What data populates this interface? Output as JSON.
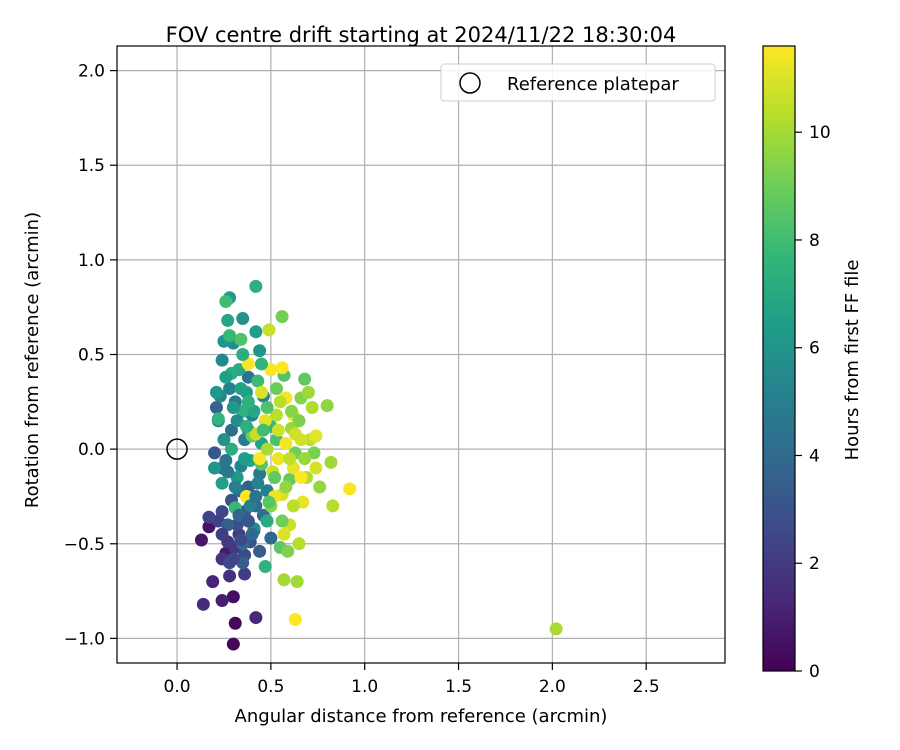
{
  "chart_data": {
    "type": "scatter",
    "title": "FOV centre drift starting at 2024/11/22 18:30:04",
    "xlabel": "Angular distance from reference (arcmin)",
    "ylabel": "Rotation from reference (arcmin)",
    "xlim": [
      -0.32,
      2.92
    ],
    "ylim": [
      -1.13,
      2.13
    ],
    "xticks": [
      "0.0",
      "0.5",
      "1.0",
      "1.5",
      "2.0",
      "2.5"
    ],
    "yticks": [
      "−1.0",
      "−0.5",
      "0.0",
      "0.5",
      "1.0",
      "1.5",
      "2.0"
    ],
    "grid": true,
    "legend": {
      "placement": "upper-right",
      "label": "Reference platepar"
    },
    "reference_point": {
      "x": 0.0,
      "y": 0.0
    },
    "colorbar": {
      "label": "Hours from first FF file",
      "range": [
        0,
        11.6
      ],
      "ticks": [
        "0",
        "2",
        "4",
        "6",
        "8",
        "10"
      ],
      "colormap": [
        "#440154",
        "#482878",
        "#3e4989",
        "#31688e",
        "#26828e",
        "#1f9e89",
        "#35b779",
        "#6ece58",
        "#b5de2b",
        "#fde725"
      ]
    },
    "points": [
      {
        "x": 0.3,
        "y": -1.03,
        "c": 0.2
      },
      {
        "x": 0.31,
        "y": -0.92,
        "c": 0.3
      },
      {
        "x": 0.3,
        "y": -0.78,
        "c": 0.5
      },
      {
        "x": 0.17,
        "y": -0.41,
        "c": 0.6
      },
      {
        "x": 0.13,
        "y": -0.48,
        "c": 0.7
      },
      {
        "x": 0.26,
        "y": -0.55,
        "c": 0.8
      },
      {
        "x": 0.24,
        "y": -0.8,
        "c": 1.0
      },
      {
        "x": 0.19,
        "y": -0.7,
        "c": 1.2
      },
      {
        "x": 0.42,
        "y": -0.89,
        "c": 1.3
      },
      {
        "x": 0.14,
        "y": -0.82,
        "c": 1.5
      },
      {
        "x": 0.28,
        "y": -0.67,
        "c": 1.6
      },
      {
        "x": 0.24,
        "y": -0.58,
        "c": 1.8
      },
      {
        "x": 0.31,
        "y": -0.52,
        "c": 1.9
      },
      {
        "x": 0.27,
        "y": -0.49,
        "c": 2.0
      },
      {
        "x": 0.36,
        "y": -0.66,
        "c": 2.1
      },
      {
        "x": 0.33,
        "y": -0.45,
        "c": 2.2
      },
      {
        "x": 0.22,
        "y": -0.38,
        "c": 2.3
      },
      {
        "x": 0.17,
        "y": -0.36,
        "c": 2.4
      },
      {
        "x": 0.24,
        "y": -0.33,
        "c": 2.5
      },
      {
        "x": 0.28,
        "y": -0.6,
        "c": 2.6
      },
      {
        "x": 0.36,
        "y": -0.56,
        "c": 2.7
      },
      {
        "x": 0.32,
        "y": -0.4,
        "c": 2.8
      },
      {
        "x": 0.39,
        "y": -0.49,
        "c": 2.9
      },
      {
        "x": 0.29,
        "y": -0.27,
        "c": 3.0
      },
      {
        "x": 0.2,
        "y": -0.02,
        "c": 3.1
      },
      {
        "x": 0.41,
        "y": -0.43,
        "c": 3.2
      },
      {
        "x": 0.36,
        "y": -0.33,
        "c": 3.3
      },
      {
        "x": 0.44,
        "y": -0.54,
        "c": 3.4
      },
      {
        "x": 0.35,
        "y": -0.6,
        "c": 3.5
      },
      {
        "x": 0.38,
        "y": -0.2,
        "c": 3.6
      },
      {
        "x": 0.21,
        "y": 0.22,
        "c": 3.7
      },
      {
        "x": 0.5,
        "y": -0.47,
        "c": 3.8
      },
      {
        "x": 0.42,
        "y": -0.3,
        "c": 3.9
      },
      {
        "x": 0.24,
        "y": -0.1,
        "c": 4.0
      },
      {
        "x": 0.33,
        "y": -0.22,
        "c": 4.1
      },
      {
        "x": 0.29,
        "y": 0.1,
        "c": 4.2
      },
      {
        "x": 0.46,
        "y": -0.35,
        "c": 4.3
      },
      {
        "x": 0.38,
        "y": 0.38,
        "c": 4.4
      },
      {
        "x": 0.26,
        "y": -0.06,
        "c": 4.5
      },
      {
        "x": 0.31,
        "y": 0.25,
        "c": 4.6
      },
      {
        "x": 0.44,
        "y": -0.13,
        "c": 4.7
      },
      {
        "x": 0.36,
        "y": 0.05,
        "c": 4.8
      },
      {
        "x": 0.22,
        "y": 0.15,
        "c": 4.9
      },
      {
        "x": 0.48,
        "y": -0.22,
        "c": 5.0
      },
      {
        "x": 0.4,
        "y": 0.18,
        "c": 5.1
      },
      {
        "x": 0.28,
        "y": 0.32,
        "c": 5.2
      },
      {
        "x": 0.34,
        "y": -0.09,
        "c": 5.3
      },
      {
        "x": 0.46,
        "y": 0.28,
        "c": 5.4
      },
      {
        "x": 0.24,
        "y": 0.47,
        "c": 5.5
      },
      {
        "x": 0.41,
        "y": -0.42,
        "c": 5.6
      },
      {
        "x": 0.3,
        "y": 0.56,
        "c": 5.7
      },
      {
        "x": 0.38,
        "y": 0.1,
        "c": 5.8
      },
      {
        "x": 0.35,
        "y": 0.69,
        "c": 5.9
      },
      {
        "x": 0.25,
        "y": 0.57,
        "c": 6.0
      },
      {
        "x": 0.44,
        "y": 0.52,
        "c": 6.1
      },
      {
        "x": 0.32,
        "y": -0.15,
        "c": 6.2
      },
      {
        "x": 0.28,
        "y": 0.8,
        "c": 6.3
      },
      {
        "x": 0.42,
        "y": 0.62,
        "c": 6.4
      },
      {
        "x": 0.37,
        "y": 0.3,
        "c": 6.5
      },
      {
        "x": 0.24,
        "y": -0.18,
        "c": 6.6
      },
      {
        "x": 0.45,
        "y": 0.03,
        "c": 6.7
      },
      {
        "x": 0.27,
        "y": 0.68,
        "c": 6.8
      },
      {
        "x": 0.39,
        "y": -0.06,
        "c": 6.9
      },
      {
        "x": 0.33,
        "y": 0.42,
        "c": 7.0
      },
      {
        "x": 0.48,
        "y": -0.38,
        "c": 7.1
      },
      {
        "x": 0.29,
        "y": 0.0,
        "c": 7.2
      },
      {
        "x": 0.42,
        "y": 0.86,
        "c": 7.3
      },
      {
        "x": 0.35,
        "y": 0.2,
        "c": 7.4
      },
      {
        "x": 0.47,
        "y": -0.62,
        "c": 7.5
      },
      {
        "x": 0.22,
        "y": 0.16,
        "c": 7.6
      },
      {
        "x": 0.5,
        "y": 0.12,
        "c": 7.7
      },
      {
        "x": 0.31,
        "y": -0.31,
        "c": 7.8
      },
      {
        "x": 0.43,
        "y": 0.36,
        "c": 7.9
      },
      {
        "x": 0.26,
        "y": 0.78,
        "c": 8.0
      },
      {
        "x": 0.37,
        "y": -0.25,
        "c": 8.1
      },
      {
        "x": 0.53,
        "y": 0.05,
        "c": 8.2
      },
      {
        "x": 0.34,
        "y": 0.58,
        "c": 8.3
      },
      {
        "x": 0.57,
        "y": 0.39,
        "c": 8.4
      },
      {
        "x": 0.45,
        "y": -0.08,
        "c": 8.5
      },
      {
        "x": 0.55,
        "y": -0.52,
        "c": 8.6
      },
      {
        "x": 0.68,
        "y": 0.37,
        "c": 8.7
      },
      {
        "x": 0.6,
        "y": -0.16,
        "c": 8.8
      },
      {
        "x": 0.4,
        "y": 0.07,
        "c": 8.9
      },
      {
        "x": 0.63,
        "y": -0.02,
        "c": 9.0
      },
      {
        "x": 0.56,
        "y": 0.7,
        "c": 9.1
      },
      {
        "x": 0.73,
        "y": -0.02,
        "c": 9.2
      },
      {
        "x": 0.59,
        "y": -0.54,
        "c": 9.3
      },
      {
        "x": 0.66,
        "y": 0.27,
        "c": 9.4
      },
      {
        "x": 0.5,
        "y": -0.3,
        "c": 9.5
      },
      {
        "x": 0.8,
        "y": 0.23,
        "c": 9.6
      },
      {
        "x": 0.76,
        "y": -0.2,
        "c": 9.7
      },
      {
        "x": 0.61,
        "y": 0.11,
        "c": 9.8
      },
      {
        "x": 0.82,
        "y": -0.07,
        "c": 9.9
      },
      {
        "x": 0.57,
        "y": -0.69,
        "c": 10.0
      },
      {
        "x": 0.64,
        "y": -0.7,
        "c": 10.0
      },
      {
        "x": 2.02,
        "y": -0.95,
        "c": 10.1
      },
      {
        "x": 0.69,
        "y": -0.15,
        "c": 10.2
      },
      {
        "x": 0.83,
        "y": -0.3,
        "c": 10.3
      },
      {
        "x": 0.53,
        "y": 0.18,
        "c": 10.4
      },
      {
        "x": 0.71,
        "y": 0.05,
        "c": 10.5
      },
      {
        "x": 0.49,
        "y": 0.63,
        "c": 10.6
      },
      {
        "x": 0.6,
        "y": -0.4,
        "c": 10.7
      },
      {
        "x": 0.66,
        "y": 0.05,
        "c": 10.8
      },
      {
        "x": 0.56,
        "y": -0.24,
        "c": 10.9
      },
      {
        "x": 0.45,
        "y": 0.3,
        "c": 11.0
      },
      {
        "x": 0.74,
        "y": 0.07,
        "c": 11.1
      },
      {
        "x": 0.62,
        "y": -0.1,
        "c": 11.2
      },
      {
        "x": 0.52,
        "y": -0.25,
        "c": 11.3
      },
      {
        "x": 0.58,
        "y": 0.27,
        "c": 11.4
      },
      {
        "x": 0.92,
        "y": -0.21,
        "c": 11.5
      },
      {
        "x": 0.38,
        "y": 0.45,
        "c": 11.5
      },
      {
        "x": 0.44,
        "y": -0.05,
        "c": 11.6
      },
      {
        "x": 0.63,
        "y": -0.9,
        "c": 11.6
      },
      {
        "x": 0.66,
        "y": -0.15,
        "c": 11.6
      },
      {
        "x": 0.56,
        "y": 0.43,
        "c": 11.6
      },
      {
        "x": 0.37,
        "y": -0.25,
        "c": 11.6
      },
      {
        "x": 0.5,
        "y": 0.42,
        "c": 11.5
      },
      {
        "x": 0.62,
        "y": 0.18,
        "c": 11.5
      },
      {
        "x": 0.58,
        "y": 0.03,
        "c": 11.4
      },
      {
        "x": 0.54,
        "y": -0.05,
        "c": 11.3
      },
      {
        "x": 0.67,
        "y": -0.28,
        "c": 11.2
      },
      {
        "x": 0.47,
        "y": 0.15,
        "c": 11.1
      },
      {
        "x": 0.57,
        "y": -0.45,
        "c": 11.0
      },
      {
        "x": 0.74,
        "y": -0.1,
        "c": 10.9
      },
      {
        "x": 0.63,
        "y": 0.08,
        "c": 10.8
      },
      {
        "x": 0.51,
        "y": -0.12,
        "c": 10.7
      },
      {
        "x": 0.42,
        "y": 0.08,
        "c": 10.6
      },
      {
        "x": 0.6,
        "y": -0.05,
        "c": 10.5
      },
      {
        "x": 0.55,
        "y": 0.25,
        "c": 10.4
      },
      {
        "x": 0.65,
        "y": -0.5,
        "c": 10.3
      },
      {
        "x": 0.72,
        "y": 0.22,
        "c": 10.2
      },
      {
        "x": 0.48,
        "y": 0.0,
        "c": 10.1
      },
      {
        "x": 0.35,
        "y": -0.5,
        "c": 4.2
      },
      {
        "x": 0.27,
        "y": -0.4,
        "c": 3.5
      },
      {
        "x": 0.32,
        "y": 0.15,
        "c": 5.6
      },
      {
        "x": 0.36,
        "y": -0.05,
        "c": 6.4
      },
      {
        "x": 0.29,
        "y": 0.4,
        "c": 7.1
      },
      {
        "x": 0.41,
        "y": 0.2,
        "c": 6.9
      },
      {
        "x": 0.25,
        "y": 0.05,
        "c": 5.9
      },
      {
        "x": 0.39,
        "y": -0.3,
        "c": 4.9
      },
      {
        "x": 0.45,
        "y": 0.45,
        "c": 7.6
      },
      {
        "x": 0.33,
        "y": -0.35,
        "c": 3.8
      },
      {
        "x": 0.52,
        "y": -0.15,
        "c": 8.7
      },
      {
        "x": 0.48,
        "y": 0.22,
        "c": 8.3
      },
      {
        "x": 0.3,
        "y": 0.22,
        "c": 6.1
      },
      {
        "x": 0.37,
        "y": 0.12,
        "c": 7.3
      },
      {
        "x": 0.43,
        "y": -0.18,
        "c": 5.2
      },
      {
        "x": 0.27,
        "y": -0.12,
        "c": 4.6
      },
      {
        "x": 0.34,
        "y": 0.32,
        "c": 6.7
      },
      {
        "x": 0.4,
        "y": -0.45,
        "c": 3.9
      },
      {
        "x": 0.23,
        "y": 0.28,
        "c": 5.4
      },
      {
        "x": 0.46,
        "y": 0.1,
        "c": 8.0
      },
      {
        "x": 0.56,
        "y": -0.38,
        "c": 9.0
      },
      {
        "x": 0.61,
        "y": 0.2,
        "c": 9.5
      },
      {
        "x": 0.68,
        "y": -0.05,
        "c": 9.8
      },
      {
        "x": 0.53,
        "y": 0.32,
        "c": 8.9
      },
      {
        "x": 0.65,
        "y": 0.15,
        "c": 9.3
      },
      {
        "x": 0.58,
        "y": -0.2,
        "c": 9.7
      },
      {
        "x": 0.7,
        "y": 0.3,
        "c": 9.9
      },
      {
        "x": 0.49,
        "y": -0.28,
        "c": 8.5
      },
      {
        "x": 0.62,
        "y": -0.3,
        "c": 10.4
      },
      {
        "x": 0.54,
        "y": 0.1,
        "c": 10.8
      },
      {
        "x": 0.2,
        "y": -0.1,
        "c": 6.0
      },
      {
        "x": 0.21,
        "y": 0.3,
        "c": 6.2
      },
      {
        "x": 0.26,
        "y": 0.38,
        "c": 6.5
      },
      {
        "x": 0.31,
        "y": -0.2,
        "c": 5.0
      },
      {
        "x": 0.35,
        "y": 0.5,
        "c": 7.2
      },
      {
        "x": 0.28,
        "y": 0.6,
        "c": 7.8
      },
      {
        "x": 0.38,
        "y": 0.25,
        "c": 7.4
      },
      {
        "x": 0.42,
        "y": -0.25,
        "c": 4.4
      },
      {
        "x": 0.3,
        "y": -0.58,
        "c": 2.5
      },
      {
        "x": 0.24,
        "y": -0.45,
        "c": 2.2
      },
      {
        "x": 0.34,
        "y": -0.48,
        "c": 2.6
      },
      {
        "x": 0.38,
        "y": -0.38,
        "c": 3.2
      }
    ]
  }
}
